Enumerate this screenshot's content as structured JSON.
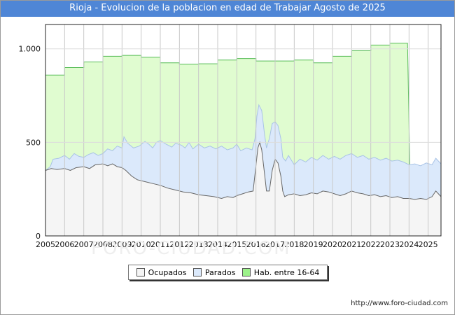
{
  "chart_data": {
    "type": "area",
    "title": "Rioja - Evolucion de la poblacion en edad de Trabajar Agosto de 2025",
    "xlabel": "",
    "ylabel": "",
    "xlim": [
      2005,
      2025.67
    ],
    "ylim": [
      0,
      1130
    ],
    "y_ticks": [
      {
        "value": 0,
        "label": "0"
      },
      {
        "value": 500,
        "label": "500"
      },
      {
        "value": 1000,
        "label": "1.000"
      }
    ],
    "x_ticks": [
      "2005",
      "2006",
      "2007",
      "2008",
      "2009",
      "2010",
      "2011",
      "2012",
      "2013",
      "2014",
      "2015",
      "2016",
      "2017",
      "2018",
      "2019",
      "2020",
      "2021",
      "2022",
      "2023",
      "2024",
      "2025"
    ],
    "grid": true,
    "series": [
      {
        "name": "Hab. entre 16-64",
        "fill": "#e0fcd0",
        "stroke": "#55bb55",
        "points": [
          [
            2005,
            860
          ],
          [
            2006,
            860
          ],
          [
            2006,
            900
          ],
          [
            2007,
            900
          ],
          [
            2007,
            930
          ],
          [
            2008,
            930
          ],
          [
            2008,
            960
          ],
          [
            2009,
            960
          ],
          [
            2009,
            965
          ],
          [
            2010,
            965
          ],
          [
            2010,
            955
          ],
          [
            2011,
            955
          ],
          [
            2011,
            925
          ],
          [
            2012,
            925
          ],
          [
            2012,
            918
          ],
          [
            2013,
            918
          ],
          [
            2013,
            920
          ],
          [
            2014,
            920
          ],
          [
            2014,
            940
          ],
          [
            2015,
            940
          ],
          [
            2015,
            948
          ],
          [
            2016,
            948
          ],
          [
            2016,
            935
          ],
          [
            2017,
            935
          ],
          [
            2017,
            935
          ],
          [
            2018,
            935
          ],
          [
            2018,
            940
          ],
          [
            2019,
            940
          ],
          [
            2019,
            925
          ],
          [
            2020,
            925
          ],
          [
            2020,
            960
          ],
          [
            2021,
            960
          ],
          [
            2021,
            990
          ],
          [
            2022,
            990
          ],
          [
            2022,
            1020
          ],
          [
            2023,
            1020
          ],
          [
            2023,
            1030
          ],
          [
            2023.92,
            1030
          ],
          [
            2024.04,
            375
          ]
        ]
      },
      {
        "name": "Parados",
        "fill": "#dbe9fb",
        "stroke": "#a9c3e6",
        "points": [
          [
            2005,
            350
          ],
          [
            2005.25,
            370
          ],
          [
            2005.4,
            410
          ],
          [
            2005.7,
            415
          ],
          [
            2006,
            430
          ],
          [
            2006.25,
            410
          ],
          [
            2006.5,
            440
          ],
          [
            2006.75,
            425
          ],
          [
            2007,
            420
          ],
          [
            2007.25,
            435
          ],
          [
            2007.5,
            445
          ],
          [
            2007.75,
            430
          ],
          [
            2008,
            440
          ],
          [
            2008.25,
            465
          ],
          [
            2008.5,
            455
          ],
          [
            2008.75,
            480
          ],
          [
            2009,
            470
          ],
          [
            2009.1,
            530
          ],
          [
            2009.3,
            495
          ],
          [
            2009.6,
            470
          ],
          [
            2009.9,
            480
          ],
          [
            2010.2,
            505
          ],
          [
            2010.4,
            490
          ],
          [
            2010.6,
            470
          ],
          [
            2010.8,
            500
          ],
          [
            2011,
            510
          ],
          [
            2011.3,
            490
          ],
          [
            2011.6,
            475
          ],
          [
            2011.8,
            495
          ],
          [
            2012.1,
            485
          ],
          [
            2012.3,
            470
          ],
          [
            2012.5,
            500
          ],
          [
            2012.7,
            465
          ],
          [
            2013,
            490
          ],
          [
            2013.3,
            470
          ],
          [
            2013.6,
            480
          ],
          [
            2013.9,
            465
          ],
          [
            2014.2,
            480
          ],
          [
            2014.5,
            460
          ],
          [
            2014.8,
            470
          ],
          [
            2015,
            490
          ],
          [
            2015.2,
            455
          ],
          [
            2015.5,
            470
          ],
          [
            2015.8,
            460
          ],
          [
            2015.95,
            520
          ],
          [
            2016.05,
            640
          ],
          [
            2016.15,
            700
          ],
          [
            2016.3,
            670
          ],
          [
            2016.45,
            540
          ],
          [
            2016.55,
            470
          ],
          [
            2016.7,
            520
          ],
          [
            2016.85,
            600
          ],
          [
            2017,
            610
          ],
          [
            2017.15,
            590
          ],
          [
            2017.3,
            520
          ],
          [
            2017.4,
            420
          ],
          [
            2017.55,
            400
          ],
          [
            2017.7,
            430
          ],
          [
            2018,
            380
          ],
          [
            2018.3,
            410
          ],
          [
            2018.6,
            395
          ],
          [
            2018.9,
            420
          ],
          [
            2019.2,
            405
          ],
          [
            2019.5,
            430
          ],
          [
            2019.8,
            410
          ],
          [
            2020.1,
            425
          ],
          [
            2020.4,
            410
          ],
          [
            2020.7,
            430
          ],
          [
            2021,
            440
          ],
          [
            2021.3,
            420
          ],
          [
            2021.6,
            430
          ],
          [
            2021.9,
            410
          ],
          [
            2022.2,
            420
          ],
          [
            2022.5,
            405
          ],
          [
            2022.8,
            415
          ],
          [
            2023.1,
            400
          ],
          [
            2023.4,
            405
          ],
          [
            2023.7,
            395
          ],
          [
            2024,
            380
          ],
          [
            2024.3,
            385
          ],
          [
            2024.6,
            375
          ],
          [
            2024.9,
            390
          ],
          [
            2025.2,
            380
          ],
          [
            2025.4,
            415
          ],
          [
            2025.67,
            385
          ]
        ]
      },
      {
        "name": "Ocupados",
        "fill": "#f5f5f5",
        "stroke": "#666666",
        "points": [
          [
            2005,
            350
          ],
          [
            2005.3,
            360
          ],
          [
            2005.6,
            355
          ],
          [
            2006,
            360
          ],
          [
            2006.3,
            350
          ],
          [
            2006.6,
            365
          ],
          [
            2007,
            370
          ],
          [
            2007.3,
            360
          ],
          [
            2007.6,
            380
          ],
          [
            2008,
            385
          ],
          [
            2008.25,
            375
          ],
          [
            2008.5,
            385
          ],
          [
            2008.75,
            370
          ],
          [
            2009,
            365
          ],
          [
            2009.2,
            350
          ],
          [
            2009.5,
            320
          ],
          [
            2009.8,
            300
          ],
          [
            2010.2,
            290
          ],
          [
            2010.6,
            280
          ],
          [
            2011,
            270
          ],
          [
            2011.4,
            255
          ],
          [
            2011.8,
            245
          ],
          [
            2012.2,
            235
          ],
          [
            2012.6,
            230
          ],
          [
            2013,
            220
          ],
          [
            2013.4,
            215
          ],
          [
            2013.8,
            210
          ],
          [
            2014.2,
            200
          ],
          [
            2014.5,
            210
          ],
          [
            2014.8,
            205
          ],
          [
            2015,
            215
          ],
          [
            2015.3,
            225
          ],
          [
            2015.6,
            235
          ],
          [
            2015.85,
            240
          ],
          [
            2015.95,
            330
          ],
          [
            2016.1,
            470
          ],
          [
            2016.2,
            500
          ],
          [
            2016.3,
            460
          ],
          [
            2016.45,
            330
          ],
          [
            2016.55,
            240
          ],
          [
            2016.7,
            240
          ],
          [
            2016.85,
            350
          ],
          [
            2017,
            410
          ],
          [
            2017.15,
            390
          ],
          [
            2017.3,
            320
          ],
          [
            2017.4,
            240
          ],
          [
            2017.5,
            210
          ],
          [
            2017.7,
            220
          ],
          [
            2018,
            225
          ],
          [
            2018.3,
            215
          ],
          [
            2018.6,
            220
          ],
          [
            2018.9,
            230
          ],
          [
            2019.2,
            225
          ],
          [
            2019.5,
            240
          ],
          [
            2019.8,
            235
          ],
          [
            2020.1,
            225
          ],
          [
            2020.4,
            215
          ],
          [
            2020.7,
            225
          ],
          [
            2021,
            240
          ],
          [
            2021.3,
            230
          ],
          [
            2021.6,
            225
          ],
          [
            2021.9,
            215
          ],
          [
            2022.2,
            220
          ],
          [
            2022.5,
            210
          ],
          [
            2022.8,
            215
          ],
          [
            2023.1,
            205
          ],
          [
            2023.4,
            210
          ],
          [
            2023.7,
            200
          ],
          [
            2024,
            200
          ],
          [
            2024.3,
            195
          ],
          [
            2024.6,
            200
          ],
          [
            2024.9,
            195
          ],
          [
            2025.2,
            210
          ],
          [
            2025.4,
            240
          ],
          [
            2025.67,
            210
          ]
        ]
      }
    ]
  },
  "legend": {
    "items": [
      {
        "label": "Ocupados",
        "color": "#f5f5f5"
      },
      {
        "label": "Parados",
        "color": "#dbe9fb"
      },
      {
        "label": "Hab. entre 16-64",
        "color": "#9cf28a"
      }
    ]
  },
  "footer": {
    "url": "http://www.foro-ciudad.com"
  },
  "watermark": "FORO-CIUDAD.COM"
}
